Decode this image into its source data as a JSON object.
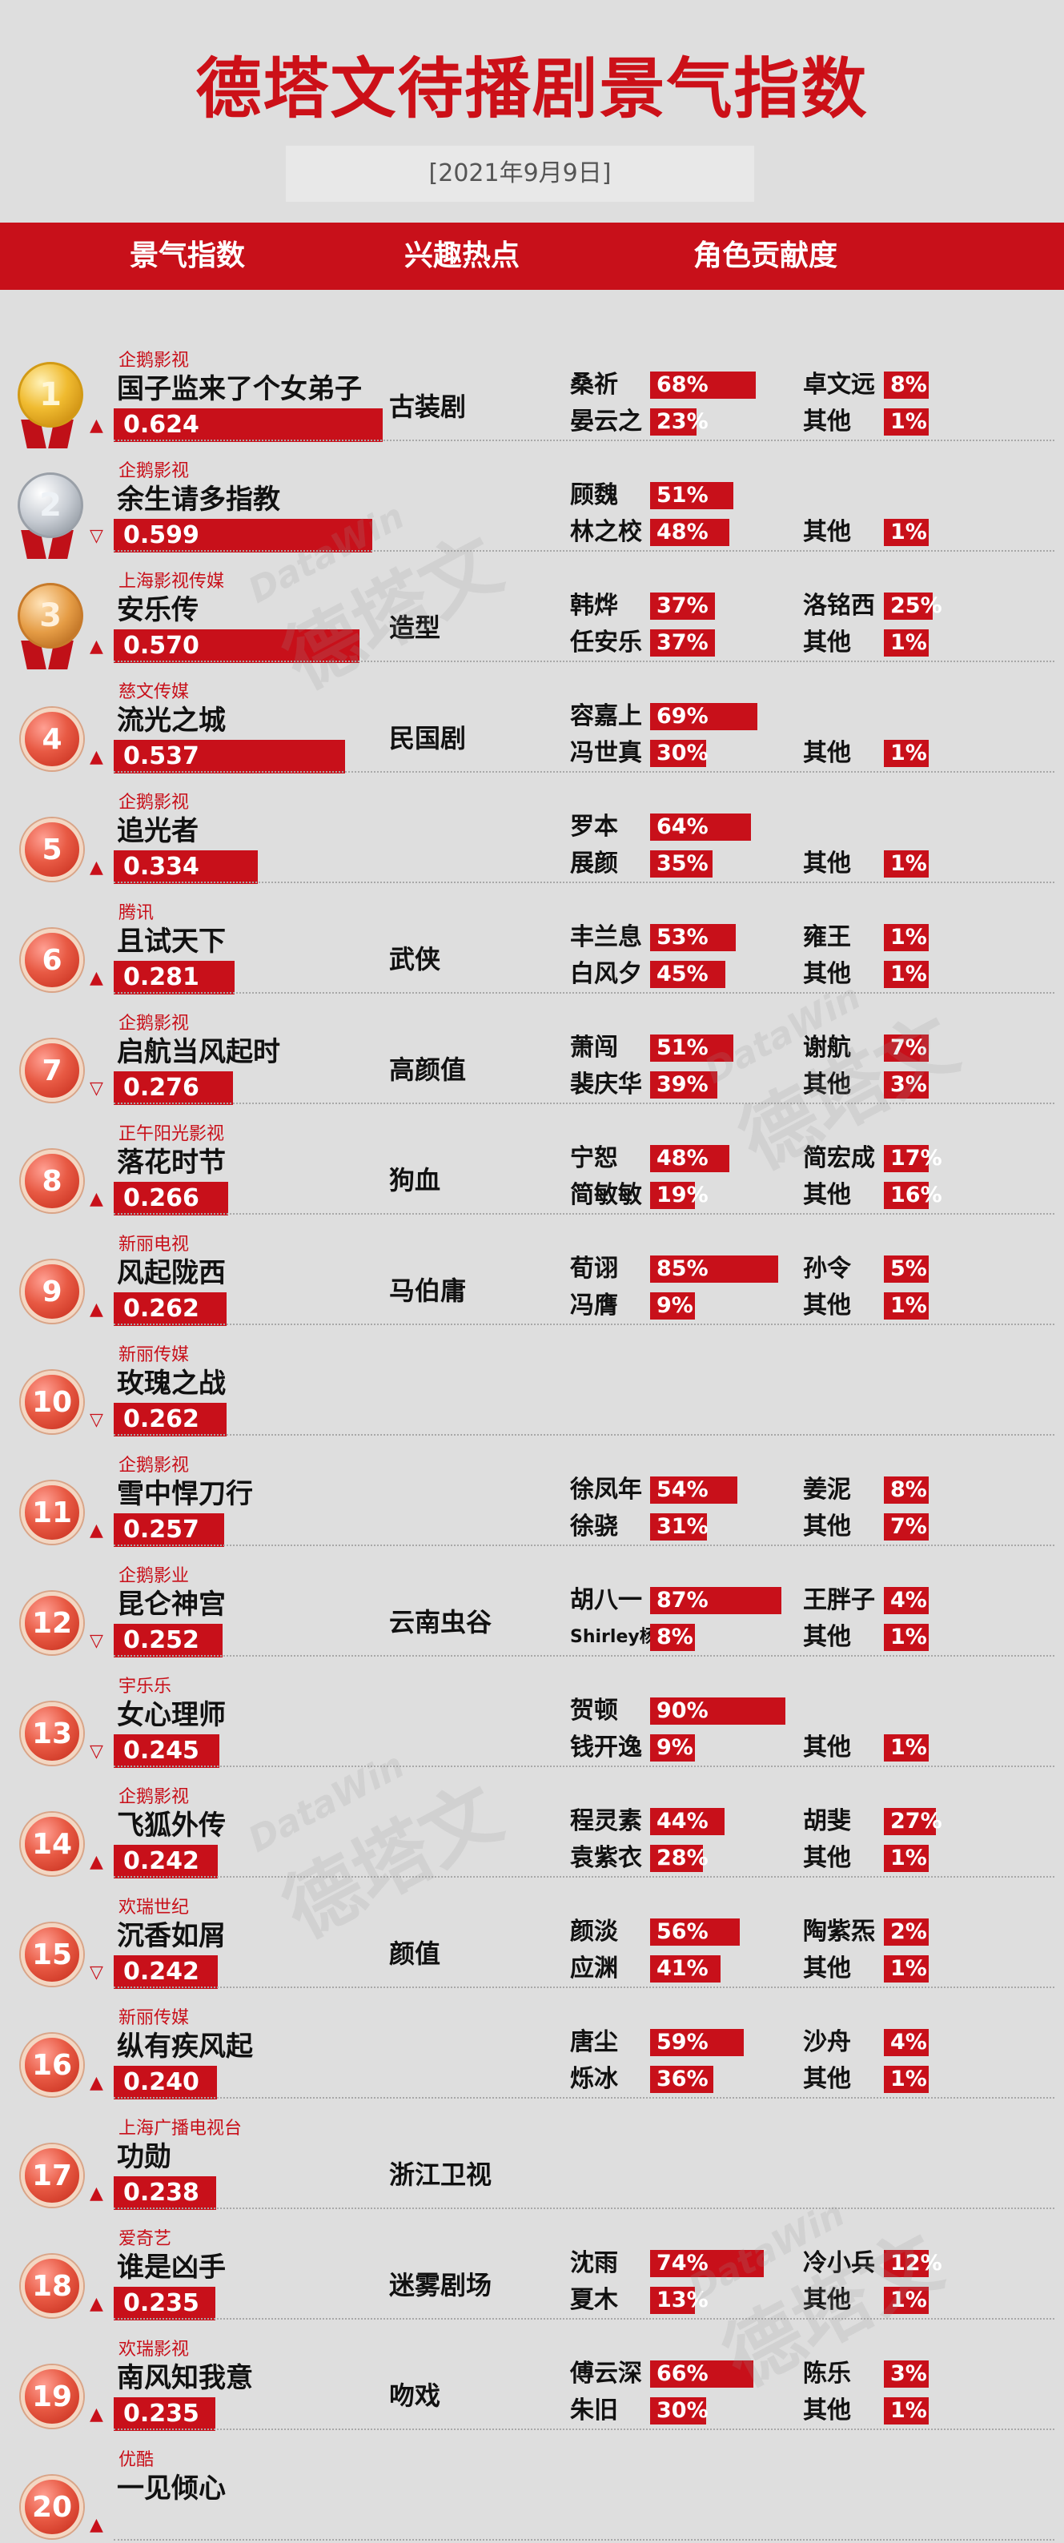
{
  "title": "德塔文待播剧景气指数",
  "date": "[2021年9月9日]",
  "headers": {
    "index": "景气指数",
    "hot": "兴趣热点",
    "roles": "角色贡献度"
  },
  "watermark": {
    "brand": "DataWin",
    "text": "德塔文"
  },
  "colors": {
    "accent": "#c8101a",
    "background": "#dedede"
  },
  "rows": [
    {
      "rank": "1",
      "medal": "gold",
      "trend": "up",
      "company": "企鹅影视",
      "drama": "国子监来了个女弟子",
      "index": "0.624",
      "hot": "古装剧",
      "roles": [
        {
          "name": "桑祈",
          "pct": "68%"
        },
        {
          "name": "卓文远",
          "pct": "8%"
        },
        {
          "name": "晏云之",
          "pct": "23%"
        },
        {
          "name": "其他",
          "pct": "1%"
        }
      ]
    },
    {
      "rank": "2",
      "medal": "silver",
      "trend": "down",
      "company": "企鹅影视",
      "drama": "余生请多指教",
      "index": "0.599",
      "hot": "",
      "roles": [
        {
          "name": "顾魏",
          "pct": "51%"
        },
        null,
        {
          "name": "林之校",
          "pct": "48%"
        },
        {
          "name": "其他",
          "pct": "1%"
        }
      ]
    },
    {
      "rank": "3",
      "medal": "bronze",
      "trend": "up",
      "company": "上海影视传媒",
      "drama": "安乐传",
      "index": "0.570",
      "hot": "造型",
      "roles": [
        {
          "name": "韩烨",
          "pct": "37%"
        },
        {
          "name": "洛铭西",
          "pct": "25%"
        },
        {
          "name": "任安乐",
          "pct": "37%"
        },
        {
          "name": "其他",
          "pct": "1%"
        }
      ]
    },
    {
      "rank": "4",
      "medal": "red",
      "trend": "up",
      "company": "慈文传媒",
      "drama": "流光之城",
      "index": "0.537",
      "hot": "民国剧",
      "roles": [
        {
          "name": "容嘉上",
          "pct": "69%"
        },
        null,
        {
          "name": "冯世真",
          "pct": "30%"
        },
        {
          "name": "其他",
          "pct": "1%"
        }
      ]
    },
    {
      "rank": "5",
      "medal": "red",
      "trend": "up",
      "company": "企鹅影视",
      "drama": "追光者",
      "index": "0.334",
      "hot": "",
      "roles": [
        {
          "name": "罗本",
          "pct": "64%"
        },
        null,
        {
          "name": "展颜",
          "pct": "35%"
        },
        {
          "name": "其他",
          "pct": "1%"
        }
      ]
    },
    {
      "rank": "6",
      "medal": "red",
      "trend": "up",
      "company": "腾讯",
      "drama": "且试天下",
      "index": "0.281",
      "hot": "武侠",
      "roles": [
        {
          "name": "丰兰息",
          "pct": "53%"
        },
        {
          "name": "雍王",
          "pct": "1%"
        },
        {
          "name": "白风夕",
          "pct": "45%"
        },
        {
          "name": "其他",
          "pct": "1%"
        }
      ]
    },
    {
      "rank": "7",
      "medal": "red",
      "trend": "down",
      "company": "企鹅影视",
      "drama": "启航当风起时",
      "index": "0.276",
      "hot": "高颜值",
      "roles": [
        {
          "name": "萧闯",
          "pct": "51%"
        },
        {
          "name": "谢航",
          "pct": "7%"
        },
        {
          "name": "裴庆华",
          "pct": "39%"
        },
        {
          "name": "其他",
          "pct": "3%"
        }
      ]
    },
    {
      "rank": "8",
      "medal": "red",
      "trend": "up",
      "company": "正午阳光影视",
      "drama": "落花时节",
      "index": "0.266",
      "hot": "狗血",
      "roles": [
        {
          "name": "宁恕",
          "pct": "48%"
        },
        {
          "name": "简宏成",
          "pct": "17%"
        },
        {
          "name": "简敏敏",
          "pct": "19%"
        },
        {
          "name": "其他",
          "pct": "16%"
        }
      ]
    },
    {
      "rank": "9",
      "medal": "red",
      "trend": "up",
      "company": "新丽电视",
      "drama": "风起陇西",
      "index": "0.262",
      "hot": "马伯庸",
      "roles": [
        {
          "name": "荀诩",
          "pct": "85%"
        },
        {
          "name": "孙令",
          "pct": "5%"
        },
        {
          "name": "冯膺",
          "pct": "9%"
        },
        {
          "name": "其他",
          "pct": "1%"
        }
      ]
    },
    {
      "rank": "10",
      "medal": "red",
      "trend": "down",
      "company": "新丽传媒",
      "drama": "玫瑰之战",
      "index": "0.262",
      "hot": "",
      "roles": [
        null,
        null,
        null,
        null
      ]
    },
    {
      "rank": "11",
      "medal": "red",
      "trend": "up",
      "company": "企鹅影视",
      "drama": "雪中悍刀行",
      "index": "0.257",
      "hot": "",
      "roles": [
        {
          "name": "徐凤年",
          "pct": "54%"
        },
        {
          "name": "姜泥",
          "pct": "8%"
        },
        {
          "name": "徐骁",
          "pct": "31%"
        },
        {
          "name": "其他",
          "pct": "7%"
        }
      ]
    },
    {
      "rank": "12",
      "medal": "red",
      "trend": "down",
      "company": "企鹅影业",
      "drama": "昆仑神宫",
      "index": "0.252",
      "hot": "云南虫谷",
      "roles": [
        {
          "name": "胡八一",
          "pct": "87%"
        },
        {
          "name": "王胖子",
          "pct": "4%"
        },
        {
          "name": "Shirley杨",
          "pct": "8%",
          "small": true
        },
        {
          "name": "其他",
          "pct": "1%"
        }
      ]
    },
    {
      "rank": "13",
      "medal": "red",
      "trend": "down",
      "company": "宇乐乐",
      "drama": "女心理师",
      "index": "0.245",
      "hot": "",
      "roles": [
        {
          "name": "贺顿",
          "pct": "90%"
        },
        null,
        {
          "name": "钱开逸",
          "pct": "9%"
        },
        {
          "name": "其他",
          "pct": "1%"
        }
      ]
    },
    {
      "rank": "14",
      "medal": "red",
      "trend": "up",
      "company": "企鹅影视",
      "drama": "飞狐外传",
      "index": "0.242",
      "hot": "",
      "roles": [
        {
          "name": "程灵素",
          "pct": "44%"
        },
        {
          "name": "胡斐",
          "pct": "27%"
        },
        {
          "name": "袁紫衣",
          "pct": "28%"
        },
        {
          "name": "其他",
          "pct": "1%"
        }
      ]
    },
    {
      "rank": "15",
      "medal": "red",
      "trend": "down",
      "company": "欢瑞世纪",
      "drama": "沉香如屑",
      "index": "0.242",
      "hot": "颜值",
      "roles": [
        {
          "name": "颜淡",
          "pct": "56%"
        },
        {
          "name": "陶紫炁",
          "pct": "2%"
        },
        {
          "name": "应渊",
          "pct": "41%"
        },
        {
          "name": "其他",
          "pct": "1%"
        }
      ]
    },
    {
      "rank": "16",
      "medal": "red",
      "trend": "up",
      "company": "新丽传媒",
      "drama": "纵有疾风起",
      "index": "0.240",
      "hot": "",
      "roles": [
        {
          "name": "唐尘",
          "pct": "59%"
        },
        {
          "name": "沙舟",
          "pct": "4%"
        },
        {
          "name": "烁冰",
          "pct": "36%"
        },
        {
          "name": "其他",
          "pct": "1%"
        }
      ]
    },
    {
      "rank": "17",
      "medal": "red",
      "trend": "up",
      "company": "上海广播电视台",
      "drama": "功勋",
      "index": "0.238",
      "hot": "浙江卫视",
      "roles": [
        null,
        null,
        null,
        null
      ]
    },
    {
      "rank": "18",
      "medal": "red",
      "trend": "up",
      "company": "爱奇艺",
      "drama": "谁是凶手",
      "index": "0.235",
      "hot": "迷雾剧场",
      "roles": [
        {
          "name": "沈雨",
          "pct": "74%"
        },
        {
          "name": "冷小兵",
          "pct": "12%"
        },
        {
          "name": "夏木",
          "pct": "13%"
        },
        {
          "name": "其他",
          "pct": "1%"
        }
      ]
    },
    {
      "rank": "19",
      "medal": "red",
      "trend": "up",
      "company": "欢瑞影视",
      "drama": "南风知我意",
      "index": "0.235",
      "hot": "吻戏",
      "roles": [
        {
          "name": "傅云深",
          "pct": "66%"
        },
        {
          "name": "陈乐",
          "pct": "3%"
        },
        {
          "name": "朱旧",
          "pct": "30%"
        },
        {
          "name": "其他",
          "pct": "1%"
        }
      ]
    },
    {
      "rank": "20",
      "medal": "red",
      "trend": "up",
      "company": "优酷",
      "drama": "一见倾心",
      "index": "",
      "hot": "",
      "roles": [
        null,
        null,
        null,
        null
      ]
    }
  ]
}
